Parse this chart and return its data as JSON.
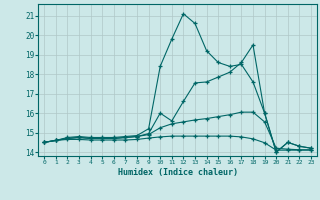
{
  "xlabel": "Humidex (Indice chaleur)",
  "xlim": [
    -0.5,
    23.5
  ],
  "ylim": [
    13.8,
    21.6
  ],
  "yticks": [
    14,
    15,
    16,
    17,
    18,
    19,
    20,
    21
  ],
  "xticks": [
    0,
    1,
    2,
    3,
    4,
    5,
    6,
    7,
    8,
    9,
    10,
    11,
    12,
    13,
    14,
    15,
    16,
    17,
    18,
    19,
    20,
    21,
    22,
    23
  ],
  "bg_color": "#cce8e8",
  "grid_color": "#b0c8c8",
  "line_color": "#006666",
  "lines": [
    [
      14.5,
      14.6,
      14.75,
      14.8,
      14.75,
      14.75,
      14.75,
      14.8,
      14.85,
      15.2,
      18.4,
      19.8,
      21.1,
      20.6,
      19.2,
      18.6,
      18.4,
      18.5,
      17.6,
      16.0,
      14.0,
      14.5,
      14.3,
      14.2
    ],
    [
      14.5,
      14.6,
      14.7,
      14.75,
      14.7,
      14.7,
      14.7,
      14.75,
      14.8,
      14.95,
      16.0,
      15.6,
      16.6,
      17.55,
      17.6,
      17.85,
      18.1,
      18.6,
      19.5,
      16.0,
      14.0,
      14.5,
      14.3,
      14.2
    ],
    [
      14.5,
      14.6,
      14.7,
      14.75,
      14.7,
      14.7,
      14.7,
      14.75,
      14.8,
      14.9,
      15.25,
      15.45,
      15.55,
      15.65,
      15.72,
      15.82,
      15.92,
      16.05,
      16.05,
      15.55,
      14.2,
      14.15,
      14.12,
      14.12
    ],
    [
      14.5,
      14.6,
      14.65,
      14.65,
      14.62,
      14.62,
      14.62,
      14.62,
      14.65,
      14.72,
      14.78,
      14.82,
      14.82,
      14.82,
      14.82,
      14.82,
      14.82,
      14.78,
      14.68,
      14.48,
      14.1,
      14.1,
      14.1,
      14.1
    ]
  ]
}
